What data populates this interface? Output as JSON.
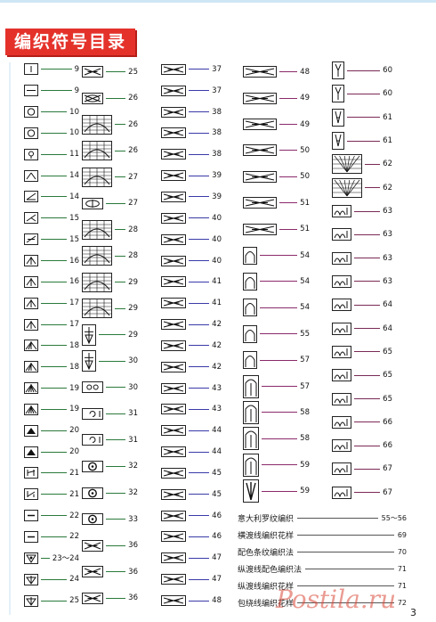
{
  "title": "编织符号目录",
  "page_number": "3",
  "columns": [
    {
      "entries": [
        {
          "icon": "stitch-symbol-vertical-bar",
          "page": "9"
        },
        {
          "icon": "stitch-symbol-horizontal-bar",
          "page": "9"
        },
        {
          "icon": "stitch-symbol-circle",
          "page": "10"
        },
        {
          "icon": "stitch-symbol-circle",
          "page": "10"
        },
        {
          "icon": "stitch-symbol-loop-stem",
          "page": "11"
        },
        {
          "icon": "stitch-symbol-left-lean",
          "page": "14"
        },
        {
          "icon": "stitch-symbol-left-lean-bar",
          "page": "14"
        },
        {
          "icon": "stitch-symbol-right-lean",
          "page": "15"
        },
        {
          "icon": "stitch-symbol-right-lean-bar",
          "page": "15"
        },
        {
          "icon": "stitch-symbol-centered-decrease",
          "page": "16"
        },
        {
          "icon": "stitch-symbol-centered-decrease",
          "page": "16"
        },
        {
          "icon": "stitch-symbol-centered-decrease",
          "page": "17"
        },
        {
          "icon": "stitch-symbol-centered-decrease",
          "page": "17"
        },
        {
          "icon": "stitch-symbol-decrease-four",
          "page": "18"
        },
        {
          "icon": "stitch-symbol-decrease-four",
          "page": "18"
        },
        {
          "icon": "stitch-symbol-decrease-five",
          "page": "19"
        },
        {
          "icon": "stitch-symbol-decrease-five",
          "page": "19"
        },
        {
          "icon": "stitch-symbol-filled-triangle",
          "page": "20"
        },
        {
          "icon": "stitch-symbol-filled-triangle",
          "page": "20"
        },
        {
          "icon": "stitch-symbol-twist-right",
          "page": "21"
        },
        {
          "icon": "stitch-symbol-twist-left",
          "page": "21"
        },
        {
          "icon": "stitch-symbol-square-bar",
          "page": "22"
        },
        {
          "icon": "stitch-symbol-square-bar",
          "page": "22"
        },
        {
          "icon": "stitch-symbol-bobble",
          "page": "23～24"
        },
        {
          "icon": "stitch-symbol-bobble-arrow",
          "page": "24"
        },
        {
          "icon": "stitch-symbol-bobble-arrow",
          "page": "25"
        }
      ]
    },
    {
      "entries": [
        {
          "icon": "stitch-symbol-cable-cross",
          "page": "25"
        },
        {
          "icon": "stitch-symbol-eye-cross",
          "page": "26"
        },
        {
          "icon": "stitch-symbol-grid-block",
          "page": "26"
        },
        {
          "icon": "stitch-symbol-grid-block",
          "page": "26"
        },
        {
          "icon": "stitch-symbol-grid-block",
          "page": "27"
        },
        {
          "icon": "stitch-symbol-oval-cross",
          "page": "27"
        },
        {
          "icon": "stitch-symbol-grid-block",
          "page": "28"
        },
        {
          "icon": "stitch-symbol-grid-block",
          "page": "28"
        },
        {
          "icon": "stitch-symbol-grid-block",
          "page": "29"
        },
        {
          "icon": "stitch-symbol-grid-block",
          "page": "29"
        },
        {
          "icon": "stitch-symbol-tall-column",
          "page": "29"
        },
        {
          "icon": "stitch-symbol-tall-column",
          "page": "30"
        },
        {
          "icon": "stitch-symbol-rolled-edge",
          "page": "30"
        },
        {
          "icon": "stitch-symbol-curl",
          "page": "31"
        },
        {
          "icon": "stitch-symbol-curl",
          "page": "31"
        },
        {
          "icon": "stitch-symbol-dot-ring",
          "page": "32"
        },
        {
          "icon": "stitch-symbol-dot-ring",
          "page": "32"
        },
        {
          "icon": "stitch-symbol-dot-ring",
          "page": "33"
        },
        {
          "icon": "stitch-symbol-cable-cross",
          "page": "36"
        },
        {
          "icon": "stitch-symbol-cable-cross",
          "page": "36"
        },
        {
          "icon": "stitch-symbol-cable-cross",
          "page": "36"
        }
      ]
    },
    {
      "entries": [
        {
          "icon": "stitch-symbol-cable-cross",
          "page": "37"
        },
        {
          "icon": "stitch-symbol-cable-cross",
          "page": "37"
        },
        {
          "icon": "stitch-symbol-cable-cross",
          "page": "38"
        },
        {
          "icon": "stitch-symbol-cable-cross",
          "page": "38"
        },
        {
          "icon": "stitch-symbol-cable-cross",
          "page": "38"
        },
        {
          "icon": "stitch-symbol-cable-cross",
          "page": "39"
        },
        {
          "icon": "stitch-symbol-cable-cross",
          "page": "39"
        },
        {
          "icon": "stitch-symbol-cable-cross",
          "page": "40"
        },
        {
          "icon": "stitch-symbol-cable-cross",
          "page": "40"
        },
        {
          "icon": "stitch-symbol-cable-cross",
          "page": "40"
        },
        {
          "icon": "stitch-symbol-cable-cross",
          "page": "41"
        },
        {
          "icon": "stitch-symbol-cable-cross",
          "page": "41"
        },
        {
          "icon": "stitch-symbol-cable-cross",
          "page": "42"
        },
        {
          "icon": "stitch-symbol-cable-cross",
          "page": "42"
        },
        {
          "icon": "stitch-symbol-cable-cross",
          "page": "42"
        },
        {
          "icon": "stitch-symbol-cable-cross",
          "page": "43"
        },
        {
          "icon": "stitch-symbol-cable-cross",
          "page": "43"
        },
        {
          "icon": "stitch-symbol-cable-cross",
          "page": "44"
        },
        {
          "icon": "stitch-symbol-cable-cross",
          "page": "44"
        },
        {
          "icon": "stitch-symbol-cable-cross",
          "page": "45"
        },
        {
          "icon": "stitch-symbol-cable-cross",
          "page": "45"
        },
        {
          "icon": "stitch-symbol-cable-cross",
          "page": "46"
        },
        {
          "icon": "stitch-symbol-cable-cross",
          "page": "46"
        },
        {
          "icon": "stitch-symbol-cable-cross",
          "page": "47"
        },
        {
          "icon": "stitch-symbol-cable-cross",
          "page": "47"
        },
        {
          "icon": "stitch-symbol-cable-cross",
          "page": "48"
        }
      ]
    },
    {
      "entries": [
        {
          "icon": "stitch-symbol-cable-cross",
          "page": "48"
        },
        {
          "icon": "stitch-symbol-cable-cross",
          "page": "49"
        },
        {
          "icon": "stitch-symbol-cable-cross",
          "page": "49"
        },
        {
          "icon": "stitch-symbol-cable-cross",
          "page": "50"
        },
        {
          "icon": "stitch-symbol-cable-cross",
          "page": "50"
        },
        {
          "icon": "stitch-symbol-cable-cross",
          "page": "51"
        },
        {
          "icon": "stitch-symbol-cable-cross",
          "page": "51"
        },
        {
          "icon": "stitch-symbol-arch",
          "page": "54"
        },
        {
          "icon": "stitch-symbol-arch",
          "page": "54"
        },
        {
          "icon": "stitch-symbol-arch",
          "page": "54"
        },
        {
          "icon": "stitch-symbol-arch",
          "page": "55"
        },
        {
          "icon": "stitch-symbol-arch",
          "page": "57"
        },
        {
          "icon": "stitch-symbol-tall-arch",
          "page": "57"
        },
        {
          "icon": "stitch-symbol-tall-arch",
          "page": "58"
        },
        {
          "icon": "stitch-symbol-tall-arch",
          "page": "58"
        },
        {
          "icon": "stitch-symbol-tall-arch",
          "page": "59"
        },
        {
          "icon": "stitch-symbol-fan",
          "page": "59"
        }
      ]
    },
    {
      "entries": [
        {
          "icon": "stitch-symbol-v-stem",
          "page": "60"
        },
        {
          "icon": "stitch-symbol-v-stem",
          "page": "60"
        },
        {
          "icon": "stitch-symbol-v-bar",
          "page": "61"
        },
        {
          "icon": "stitch-symbol-v-bar",
          "page": "61"
        },
        {
          "icon": "stitch-symbol-fan-grid",
          "page": "62"
        },
        {
          "icon": "stitch-symbol-fan-grid",
          "page": "62"
        },
        {
          "icon": "stitch-symbol-loop-chain",
          "page": "63"
        },
        {
          "icon": "stitch-symbol-loop-chain",
          "page": "63"
        },
        {
          "icon": "stitch-symbol-loop-chain",
          "page": "63"
        },
        {
          "icon": "stitch-symbol-loop-chain",
          "page": "63"
        },
        {
          "icon": "stitch-symbol-loop-chain",
          "page": "64"
        },
        {
          "icon": "stitch-symbol-loop-chain",
          "page": "64"
        },
        {
          "icon": "stitch-symbol-loop-chain",
          "page": "65"
        },
        {
          "icon": "stitch-symbol-loop-chain",
          "page": "65"
        },
        {
          "icon": "stitch-symbol-loop-chain",
          "page": "65"
        },
        {
          "icon": "stitch-symbol-loop-chain",
          "page": "66"
        },
        {
          "icon": "stitch-symbol-loop-chain",
          "page": "66"
        },
        {
          "icon": "stitch-symbol-loop-chain",
          "page": "67"
        },
        {
          "icon": "stitch-symbol-loop-chain",
          "page": "67"
        }
      ]
    }
  ],
  "text_entries": [
    {
      "label": "意大利罗纹编织",
      "page": "55～56"
    },
    {
      "label": "横渡线编织花样",
      "page": "69"
    },
    {
      "label": "配色条纹编织法",
      "page": "70"
    },
    {
      "label": "纵渡线配色编织法",
      "page": "71"
    },
    {
      "label": "纵渡线编织花样",
      "page": "71"
    },
    {
      "label": "包绕线编织花样",
      "page": "72"
    }
  ],
  "watermark": "Postila.ru",
  "colors": {
    "title_bg": "#e4322b",
    "title_text": "#ffffff",
    "lead_c1": "#2a7a3b",
    "lead_c2": "#2a7a3b",
    "lead_c3": "#3a3aa8",
    "lead_c4": "#8a2a6a",
    "lead_c5": "#7a2a55"
  }
}
